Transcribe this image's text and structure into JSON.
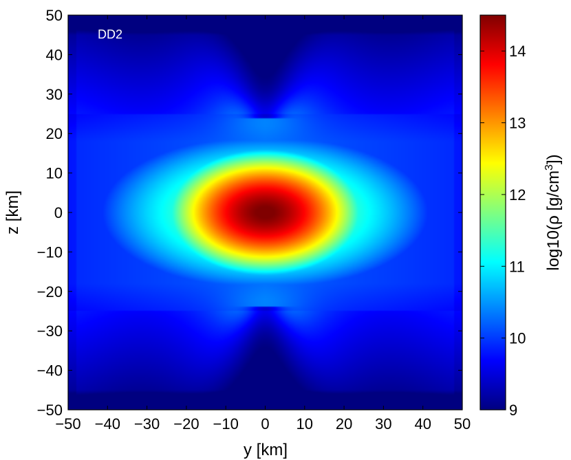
{
  "chart_data": {
    "type": "heatmap",
    "annotation": "DD2",
    "xlabel": "y [km]",
    "ylabel": "z [km]",
    "xlim": [
      -50,
      50
    ],
    "ylim": [
      -50,
      50
    ],
    "xticks": [
      "−50",
      "−40",
      "−30",
      "−20",
      "−10",
      "0",
      "10",
      "20",
      "30",
      "40",
      "50"
    ],
    "yticks": [
      "50",
      "40",
      "30",
      "20",
      "10",
      "0",
      "−10",
      "−20",
      "−30",
      "−40",
      "−50"
    ],
    "colorbar": {
      "label_prefix": "log10(ρ [g/cm",
      "label_sup": "3",
      "label_suffix": "])",
      "range": [
        9,
        14.5
      ],
      "ticks": [
        "9",
        "10",
        "11",
        "12",
        "13",
        "14"
      ],
      "tick_values": [
        9,
        10,
        11,
        12,
        13,
        14
      ],
      "colormap": "jet"
    },
    "field": {
      "description_values": "log10 density field; peak ~14.5 near origin, falling to ~9 at z=±50",
      "core_value": 14.5,
      "background_value": 9.0,
      "disk_half_width_y": 47,
      "disk_half_height_z": 22,
      "funnel_pinch_z": 24
    }
  }
}
